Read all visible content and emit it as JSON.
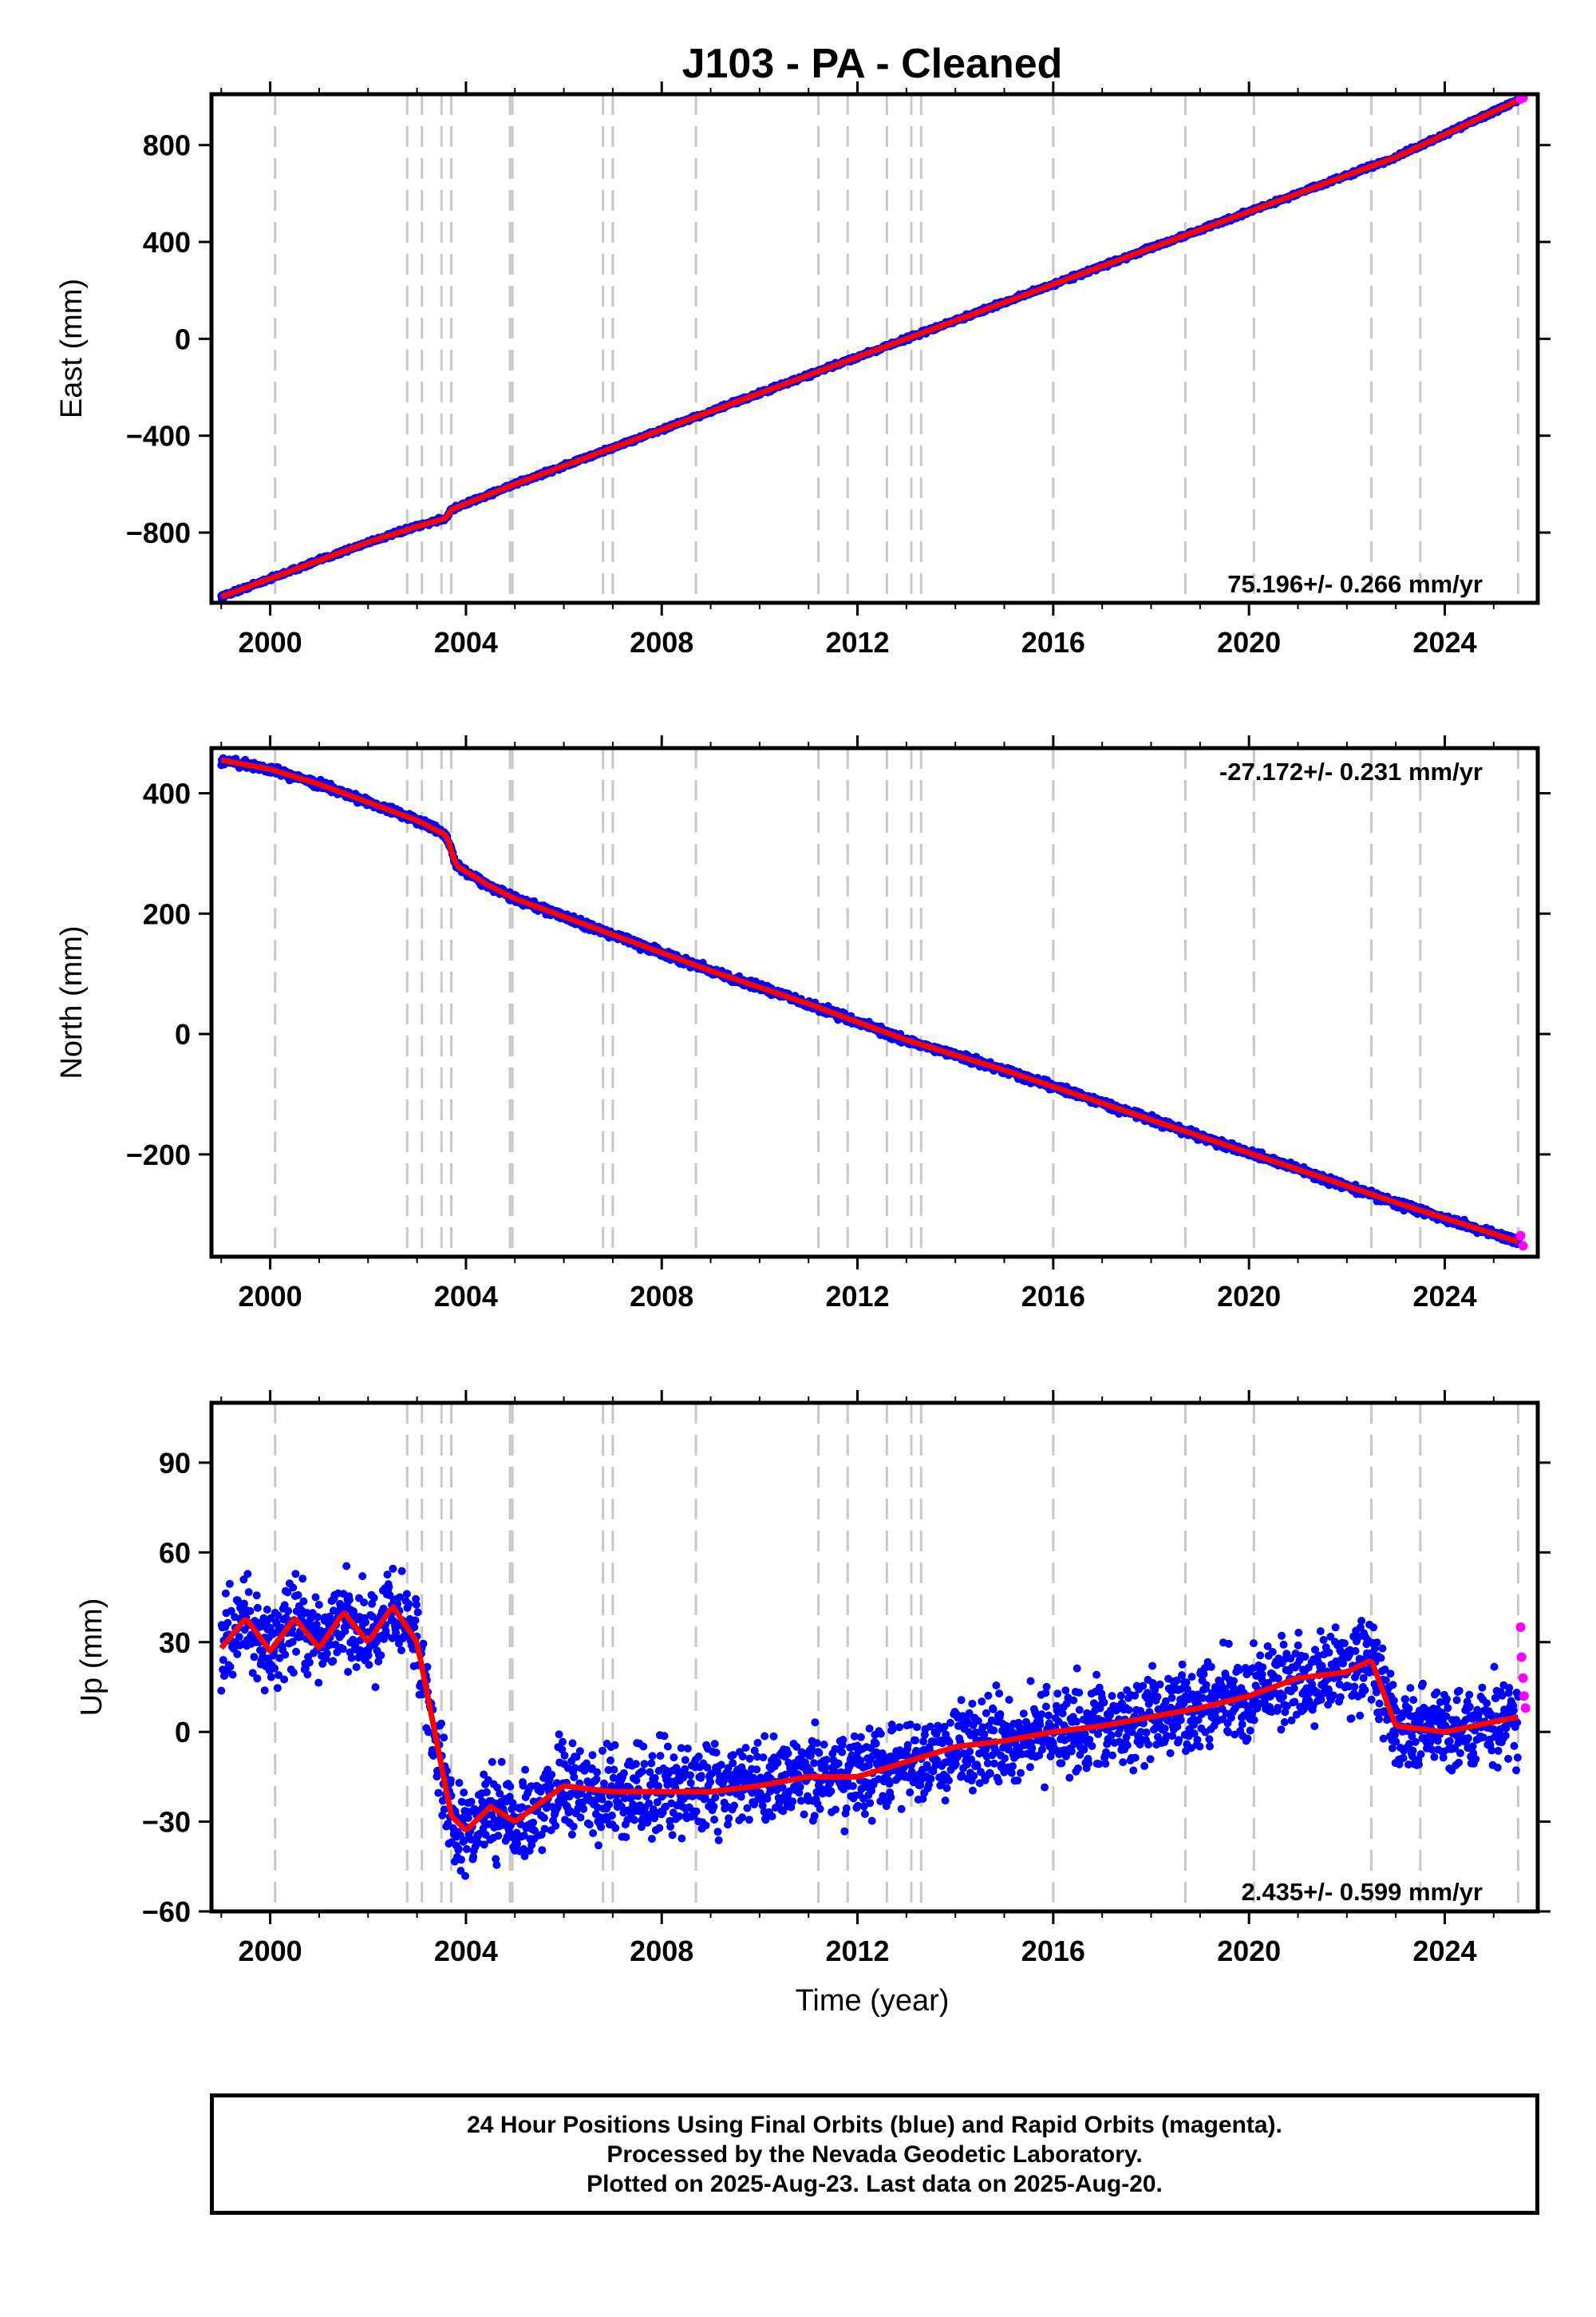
{
  "title": "J103  - PA - Cleaned",
  "xlabel": "Time (year)",
  "footer": {
    "line1": "24 Hour Positions Using Final Orbits (blue) and Rapid Orbits (magenta).",
    "line2": "Processed by the Nevada Geodetic Laboratory.",
    "line3": "Plotted on 2025-Aug-23. Last data on 2025-Aug-20."
  },
  "colors": {
    "final": "#0000ff",
    "rapid": "#ff00ff",
    "model": "#ff0000",
    "events": "#c8c8c8"
  },
  "chart_data": [
    {
      "type": "scatter",
      "panel": "east",
      "ylabel": "East (mm)",
      "rate": "75.196+/- 0.266 mm/yr",
      "xlim": [
        1998.8,
        2025.9
      ],
      "ylim": [
        -1090,
        1010
      ],
      "xticks": [
        2000,
        2004,
        2008,
        2012,
        2016,
        2020,
        2024
      ],
      "yticks": [
        -800,
        -400,
        0,
        400,
        800
      ],
      "xticklabels": [
        "2000",
        "2004",
        "2008",
        "2012",
        "2016",
        "2020",
        "2024"
      ],
      "yticklabels": [
        "−800",
        "−400",
        "0",
        "400",
        "800"
      ],
      "event_lines": [
        2000.1,
        2002.8,
        2003.1,
        2003.5,
        2003.7,
        2004.9,
        2004.95,
        2006.8,
        2007.0,
        2008.7,
        2011.2,
        2011.8,
        2012.6,
        2013.1,
        2013.3,
        2016.0,
        2018.7,
        2020.1,
        2022.5,
        2023.5,
        2025.5
      ],
      "series": [
        {
          "name": "final",
          "x": [
            1999.0,
            2000.0,
            2001.0,
            2002.0,
            2003.0,
            2003.6,
            2003.7,
            2005.0,
            2007.0,
            2009.0,
            2011.0,
            2013.0,
            2015.0,
            2017.0,
            2019.0,
            2021.0,
            2023.0,
            2025.5
          ],
          "y": [
            -1065,
            -990,
            -915,
            -840,
            -775,
            -740,
            -705,
            -600,
            -450,
            -300,
            -150,
            0,
            150,
            300,
            450,
            600,
            750,
            985
          ]
        },
        {
          "name": "rapid",
          "x": [
            2025.55,
            2025.6
          ],
          "y": [
            990,
            995
          ]
        }
      ]
    },
    {
      "type": "scatter",
      "panel": "north",
      "ylabel": "North (mm)",
      "rate": "-27.172+/- 0.231 mm/yr",
      "xlim": [
        1998.8,
        2025.9
      ],
      "ylim": [
        -370,
        475
      ],
      "xticks": [
        2000,
        2004,
        2008,
        2012,
        2016,
        2020,
        2024
      ],
      "yticks": [
        -200,
        0,
        200,
        400
      ],
      "xticklabels": [
        "2000",
        "2004",
        "2008",
        "2012",
        "2016",
        "2020",
        "2024"
      ],
      "yticklabels": [
        "−200",
        "0",
        "200",
        "400"
      ],
      "event_lines": [
        2000.1,
        2002.8,
        2003.1,
        2003.5,
        2003.7,
        2004.9,
        2004.95,
        2006.8,
        2007.0,
        2008.7,
        2011.2,
        2011.8,
        2012.6,
        2013.1,
        2013.3,
        2016.0,
        2018.7,
        2020.1,
        2022.5,
        2023.5,
        2025.5
      ],
      "series": [
        {
          "name": "final",
          "x": [
            1999.0,
            2000.0,
            2001.0,
            2002.0,
            2003.0,
            2003.6,
            2003.8,
            2004.5,
            2005.0,
            2007.0,
            2009.0,
            2011.0,
            2013.0,
            2015.0,
            2017.0,
            2019.0,
            2021.0,
            2023.0,
            2025.5
          ],
          "y": [
            455,
            440,
            415,
            385,
            355,
            330,
            280,
            245,
            225,
            165,
            105,
            50,
            -10,
            -60,
            -115,
            -170,
            -225,
            -280,
            -345
          ]
        },
        {
          "name": "rapid",
          "x": [
            2025.55,
            2025.6
          ],
          "y": [
            -335,
            -352
          ]
        }
      ]
    },
    {
      "type": "scatter",
      "panel": "up",
      "ylabel": "Up (mm)",
      "rate": "2.435+/- 0.599 mm/yr",
      "xlim": [
        1998.8,
        2025.9
      ],
      "ylim": [
        -60,
        110
      ],
      "xticks": [
        2000,
        2004,
        2008,
        2012,
        2016,
        2020,
        2024
      ],
      "yticks": [
        -60,
        -30,
        0,
        30,
        60,
        90
      ],
      "xticklabels": [
        "2000",
        "2004",
        "2008",
        "2012",
        "2016",
        "2020",
        "2024"
      ],
      "yticklabels": [
        "−60",
        "−30",
        "0",
        "30",
        "60",
        "90"
      ],
      "event_lines": [
        2000.1,
        2002.8,
        2003.1,
        2003.5,
        2003.7,
        2004.9,
        2004.95,
        2006.8,
        2007.0,
        2008.7,
        2011.2,
        2011.8,
        2012.6,
        2013.1,
        2013.3,
        2016.0,
        2018.7,
        2020.1,
        2022.5,
        2023.5,
        2025.5
      ],
      "series": [
        {
          "name": "final",
          "x": [
            1999.0,
            1999.5,
            2000.0,
            2000.5,
            2001.0,
            2001.5,
            2002.0,
            2002.5,
            2003.0,
            2003.7,
            2004.0,
            2004.5,
            2005.0,
            2006.0,
            2007.0,
            2008.0,
            2009.0,
            2010.0,
            2011.0,
            2012.0,
            2013.0,
            2014.0,
            2015.0,
            2016.0,
            2017.0,
            2018.0,
            2019.0,
            2020.0,
            2021.0,
            2022.0,
            2022.5,
            2023.0,
            2024.0,
            2025.5
          ],
          "y": [
            28,
            38,
            27,
            38,
            28,
            40,
            30,
            42,
            30,
            -28,
            -33,
            -25,
            -30,
            -18,
            -20,
            -20,
            -20,
            -18,
            -15,
            -15,
            -10,
            -5,
            -3,
            0,
            2,
            5,
            8,
            12,
            18,
            20,
            24,
            2,
            0,
            5
          ]
        },
        {
          "name": "rapid",
          "x": [
            2025.55,
            2025.57,
            2025.6,
            2025.62,
            2025.65
          ],
          "y": [
            35,
            25,
            18,
            12,
            8
          ]
        }
      ]
    }
  ]
}
